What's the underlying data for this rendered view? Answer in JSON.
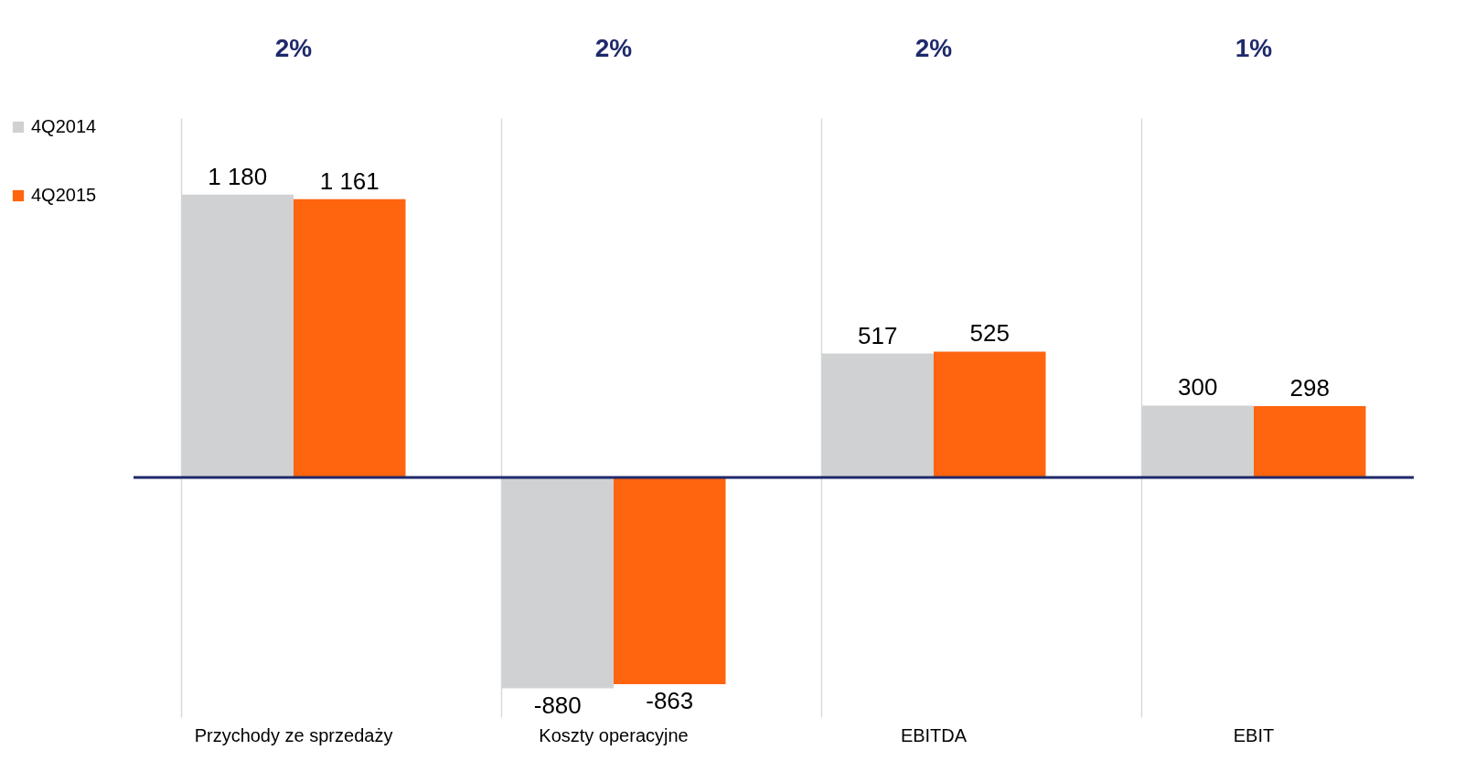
{
  "chart_data": {
    "type": "bar",
    "categories": [
      "Przychody ze sprzedaży",
      "Koszty operacyjne",
      "EBITDA",
      "EBIT"
    ],
    "series": [
      {
        "name": "4Q2014",
        "color": "#d0d1d3",
        "values": [
          1180,
          -880,
          517,
          300
        ],
        "value_labels": [
          "1 180",
          "-880",
          "517",
          "300"
        ]
      },
      {
        "name": "4Q2015",
        "color": "#ff640f",
        "values": [
          1161,
          -863,
          525,
          298
        ],
        "value_labels": [
          "1 161",
          "-863",
          "525",
          "298"
        ]
      }
    ],
    "ylim": [
      -1000,
      1500
    ],
    "tick_labels": "x",
    "grid": "x",
    "legend": "left",
    "ref_lines": [
      {
        "axis": "y",
        "value": 0,
        "color": "#1f2a6b"
      }
    ],
    "annotations": [
      "2%",
      "2%",
      "2%",
      "1%"
    ]
  }
}
